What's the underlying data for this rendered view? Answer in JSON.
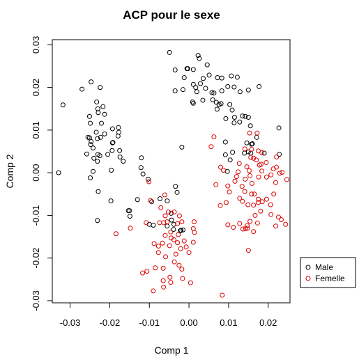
{
  "chart_data": {
    "type": "scatter",
    "title": "ACP pour le sexe",
    "xlabel": "Comp 1",
    "ylabel": "Comp 2",
    "xlim": [
      -0.0345,
      0.0255
    ],
    "ylim": [
      -0.0305,
      0.0312
    ],
    "xticks": [
      -0.03,
      -0.02,
      -0.01,
      0.0,
      0.01,
      0.02
    ],
    "xtick_labels": [
      "-0.03",
      "-0.02",
      "-0.01",
      "0.00",
      "0.01",
      "0.02"
    ],
    "yticks": [
      -0.03,
      -0.02,
      -0.01,
      0.0,
      0.01,
      0.02,
      0.03
    ],
    "ytick_labels": [
      "-0.03",
      "-0.02",
      "-0.01",
      "0.00",
      "0.01",
      "0.02",
      "0.03"
    ],
    "grid": false,
    "legend_position": "right",
    "series": [
      {
        "name": "Male",
        "color": "#000000",
        "points": [
          [
            -0.0049,
            0.0282
          ],
          [
            0.0023,
            0.0275
          ],
          [
            0.0026,
            0.0268
          ],
          [
            -0.0005,
            0.0244
          ],
          [
            -0.0003,
            0.0244
          ],
          [
            -0.0035,
            0.0241
          ],
          [
            0.0046,
            0.0253
          ],
          [
            0.0011,
            0.0242
          ],
          [
            0.0051,
            0.0229
          ],
          [
            -0.0012,
            0.0223
          ],
          [
            0.0036,
            0.0221
          ],
          [
            0.0072,
            0.0223
          ],
          [
            0.0083,
            0.0222
          ],
          [
            0.0107,
            0.0227
          ],
          [
            0.0122,
            0.0224
          ],
          [
            0.0011,
            0.0207
          ],
          [
            0.0017,
            0.02
          ],
          [
            0.0029,
            0.0209
          ],
          [
            0.0042,
            0.0198
          ],
          [
            -0.0035,
            0.0192
          ],
          [
            -0.0015,
            0.0195
          ],
          [
            0.002,
            0.019
          ],
          [
            0.0058,
            0.0188
          ],
          [
            0.0063,
            0.0187
          ],
          [
            0.0083,
            0.0192
          ],
          [
            0.0098,
            0.0202
          ],
          [
            0.0114,
            0.0201
          ],
          [
            0.0129,
            0.019
          ],
          [
            0.015,
            0.0194
          ],
          [
            0.0177,
            0.0202
          ],
          [
            0.0009,
            0.0166
          ],
          [
            0.0011,
            0.0163
          ],
          [
            0.0035,
            0.017
          ],
          [
            0.006,
            0.0171
          ],
          [
            0.0069,
            0.0165
          ],
          [
            0.0076,
            0.016
          ],
          [
            0.0071,
            0.0149
          ],
          [
            0.0081,
            0.0162
          ],
          [
            0.0103,
            0.016
          ],
          [
            0.0109,
            0.0147
          ],
          [
            0.0115,
            0.013
          ],
          [
            0.0135,
            0.0133
          ],
          [
            0.0142,
            0.0132
          ],
          [
            0.0093,
            0.0127
          ],
          [
            0.0114,
            0.0117
          ],
          [
            0.0128,
            0.0119
          ],
          [
            0.015,
            0.013
          ],
          [
            0.0155,
            0.011
          ],
          [
            0.0171,
            0.0083
          ],
          [
            0.0227,
            0.0105
          ],
          [
            0.0092,
            0.0072
          ],
          [
            0.0146,
            0.007
          ],
          [
            0.0158,
            0.0067
          ],
          [
            0.016,
            0.0068
          ],
          [
            0.011,
            0.0048
          ],
          [
            0.014,
            0.0046
          ],
          [
            0.015,
            0.0049
          ],
          [
            0.0156,
            0.0046
          ],
          [
            0.019,
            0.0046
          ],
          [
            0.0228,
            0.0043
          ],
          [
            0.0092,
            0.0042
          ],
          [
            -0.0224,
            0.02
          ],
          [
            -0.0247,
            0.0213
          ],
          [
            -0.0233,
            0.0166
          ],
          [
            -0.023,
            0.015
          ],
          [
            -0.0229,
            0.0141
          ],
          [
            -0.0217,
            0.0155
          ],
          [
            -0.0213,
            0.0137
          ],
          [
            -0.027,
            0.0196
          ],
          [
            -0.0318,
            0.0159
          ],
          [
            -0.0251,
            0.0132
          ],
          [
            -0.0249,
            0.0116
          ],
          [
            -0.0221,
            0.0116
          ],
          [
            -0.0193,
            0.0103
          ],
          [
            -0.0178,
            0.0106
          ],
          [
            -0.0234,
            0.0095
          ],
          [
            -0.0213,
            0.0091
          ],
          [
            -0.0177,
            0.0095
          ],
          [
            -0.0179,
            0.0086
          ],
          [
            -0.0255,
            0.0083
          ],
          [
            -0.0251,
            0.0082
          ],
          [
            -0.0247,
            0.0073
          ],
          [
            -0.0231,
            0.008
          ],
          [
            -0.0223,
            0.0083
          ],
          [
            -0.0193,
            0.007
          ],
          [
            -0.0192,
            0.0071
          ],
          [
            -0.0248,
            0.0066
          ],
          [
            -0.0242,
            0.0058
          ],
          [
            -0.0194,
            0.0052
          ],
          [
            -0.0175,
            0.0052
          ],
          [
            -0.0258,
            0.0044
          ],
          [
            -0.023,
            0.0043
          ],
          [
            -0.0225,
            0.004
          ],
          [
            -0.0205,
            0.0043
          ],
          [
            -0.0174,
            0.0037
          ],
          [
            -0.0166,
            0.0027
          ],
          [
            -0.024,
            0.0034
          ],
          [
            -0.0231,
            0.0027
          ],
          [
            -0.0329,
            0.0
          ],
          [
            -0.0242,
            0.0003
          ],
          [
            -0.0196,
            0.0006
          ],
          [
            -0.0249,
            -0.0012
          ],
          [
            -0.0229,
            -0.0044
          ],
          [
            -0.0197,
            -0.0066
          ],
          [
            -0.012,
            0.0035
          ],
          [
            -0.0121,
            0.0012
          ],
          [
            -0.0116,
            -0.0003
          ],
          [
            -0.0103,
            -0.0015
          ],
          [
            -0.0018,
            0.006
          ],
          [
            0.0097,
            0.0003
          ],
          [
            0.0104,
            0.003
          ],
          [
            -0.0034,
            -0.0032
          ],
          [
            -0.003,
            -0.0046
          ],
          [
            -0.0055,
            -0.0066
          ],
          [
            -0.0073,
            -0.0061
          ],
          [
            -0.0094,
            -0.0068
          ],
          [
            -0.013,
            -0.0063
          ],
          [
            -0.015,
            -0.0089
          ],
          [
            -0.0153,
            -0.0089
          ],
          [
            -0.0149,
            -0.0102
          ],
          [
            -0.0231,
            -0.0112
          ],
          [
            -0.0045,
            -0.0095
          ],
          [
            -0.0044,
            -0.0111
          ],
          [
            -0.0038,
            -0.0121
          ],
          [
            -0.002,
            -0.0135
          ],
          [
            -0.0022,
            -0.0136
          ],
          [
            -0.0015,
            -0.0134
          ],
          [
            -0.0039,
            -0.0133
          ],
          [
            -0.0055,
            -0.0125
          ],
          [
            -0.009,
            -0.0123
          ],
          [
            -0.01,
            -0.0121
          ]
        ]
      },
      {
        "name": "Femelle",
        "color": "#dd0000",
        "points": [
          [
            0.0063,
            0.0084
          ],
          [
            0.0056,
            0.0061
          ],
          [
            0.0153,
            0.0093
          ],
          [
            0.0172,
            0.0093
          ],
          [
            0.0141,
            0.0056
          ],
          [
            0.0158,
            0.0055
          ],
          [
            0.0175,
            0.0051
          ],
          [
            0.0184,
            0.0047
          ],
          [
            0.0221,
            0.0037
          ],
          [
            0.0163,
            0.0034
          ],
          [
            0.0127,
            0.0022
          ],
          [
            0.008,
            0.0013
          ],
          [
            0.0087,
            0.0006
          ],
          [
            0.0124,
            0.0002
          ],
          [
            0.0146,
            0.0014
          ],
          [
            0.0152,
            0.0005
          ],
          [
            0.017,
            0.003
          ],
          [
            0.0195,
            0.0024
          ],
          [
            0.0156,
            0.0036
          ],
          [
            0.0178,
            0.0018
          ],
          [
            0.0182,
            0.002
          ],
          [
            0.0184,
            0.0004
          ],
          [
            0.0213,
            0.0009
          ],
          [
            0.0221,
            0.0013
          ],
          [
            0.0229,
            -0.0001
          ],
          [
            0.0235,
            0.0001
          ],
          [
            0.012,
            -0.0009
          ],
          [
            0.0116,
            -0.002
          ],
          [
            0.0142,
            -0.0015
          ],
          [
            0.0154,
            -0.0007
          ],
          [
            0.0159,
            -0.0025
          ],
          [
            0.0176,
            -0.001
          ],
          [
            0.0196,
            -0.001
          ],
          [
            0.0207,
            -0.0005
          ],
          [
            0.0219,
            -0.0023
          ],
          [
            0.0247,
            -0.0016
          ],
          [
            0.0068,
            -0.0028
          ],
          [
            0.0098,
            -0.0031
          ],
          [
            0.0102,
            -0.0045
          ],
          [
            0.0134,
            -0.0032
          ],
          [
            0.0141,
            -0.0044
          ],
          [
            0.0158,
            -0.005
          ],
          [
            0.0165,
            -0.005
          ],
          [
            0.0175,
            -0.0062
          ],
          [
            0.0185,
            -0.0068
          ],
          [
            0.0196,
            -0.0062
          ],
          [
            0.0214,
            -0.005
          ],
          [
            0.0206,
            -0.0075
          ],
          [
            0.0128,
            -0.006
          ],
          [
            0.0135,
            -0.0067
          ],
          [
            0.0149,
            -0.0075
          ],
          [
            0.0163,
            -0.0076
          ],
          [
            0.0175,
            -0.007
          ],
          [
            0.0094,
            -0.007
          ],
          [
            0.0079,
            -0.0077
          ],
          [
            0.0167,
            -0.01
          ],
          [
            0.0181,
            -0.009
          ],
          [
            0.0207,
            -0.0098
          ],
          [
            0.0226,
            -0.0104
          ],
          [
            0.0233,
            -0.011
          ],
          [
            0.0219,
            -0.0125
          ],
          [
            0.0244,
            -0.0121
          ],
          [
            0.0128,
            -0.0119
          ],
          [
            0.0154,
            -0.0114
          ],
          [
            0.0147,
            -0.0124
          ],
          [
            0.0148,
            -0.013
          ],
          [
            0.0163,
            -0.0138
          ],
          [
            0.0173,
            -0.0118
          ],
          [
            0.0112,
            -0.0128
          ],
          [
            0.0143,
            -0.0131
          ],
          [
            0.015,
            -0.0182
          ],
          [
            0.0136,
            -0.0132
          ],
          [
            0.0098,
            -0.0122
          ],
          [
            0.0084,
            -0.0287
          ],
          [
            -0.0061,
            -0.0052
          ],
          [
            -0.0101,
            -0.0021
          ],
          [
            -0.0097,
            -0.0065
          ],
          [
            -0.0184,
            -0.0143
          ],
          [
            -0.0071,
            -0.0082
          ],
          [
            -0.006,
            -0.0101
          ],
          [
            -0.0052,
            -0.0092
          ],
          [
            -0.0037,
            -0.0092
          ],
          [
            -0.0024,
            -0.0101
          ],
          [
            -0.0074,
            -0.0117
          ],
          [
            -0.0064,
            -0.0117
          ],
          [
            -0.0055,
            -0.0115
          ],
          [
            -0.0029,
            -0.0119
          ],
          [
            -0.0018,
            -0.0115
          ],
          [
            0.0013,
            -0.0115
          ],
          [
            -0.0046,
            -0.0139
          ],
          [
            -0.006,
            -0.0147
          ],
          [
            -0.0045,
            -0.0153
          ],
          [
            -0.0038,
            -0.0157
          ],
          [
            -0.0027,
            -0.0145
          ],
          [
            0.0011,
            -0.0131
          ],
          [
            0.0014,
            -0.014
          ],
          [
            -0.0029,
            -0.0164
          ],
          [
            -0.0049,
            -0.0171
          ],
          [
            -0.0067,
            -0.0165
          ],
          [
            -0.0077,
            -0.0172
          ],
          [
            -0.0012,
            -0.016
          ],
          [
            -0.0007,
            -0.0174
          ],
          [
            -0.0021,
            -0.0178
          ],
          [
            -0.0033,
            -0.0191
          ],
          [
            0.0,
            -0.0187
          ],
          [
            0.0011,
            -0.0163
          ],
          [
            -0.0077,
            -0.0187
          ],
          [
            -0.0059,
            -0.0197
          ],
          [
            -0.0037,
            -0.0209
          ],
          [
            -0.0025,
            -0.0217
          ],
          [
            -0.0065,
            -0.0224
          ],
          [
            -0.0085,
            -0.0223
          ],
          [
            -0.0106,
            -0.0231
          ],
          [
            -0.0117,
            -0.0235
          ],
          [
            -0.0048,
            -0.0245
          ],
          [
            -0.0018,
            -0.0226
          ],
          [
            -0.0046,
            -0.0257
          ],
          [
            -0.0065,
            -0.0253
          ],
          [
            -0.0064,
            -0.0268
          ],
          [
            -0.009,
            -0.0277
          ],
          [
            -0.0016,
            -0.0248
          ],
          [
            0.0004,
            -0.0258
          ],
          [
            -0.0148,
            -0.013
          ],
          [
            -0.0108,
            -0.0117
          ],
          [
            -0.0088,
            -0.0166
          ]
        ]
      }
    ]
  }
}
